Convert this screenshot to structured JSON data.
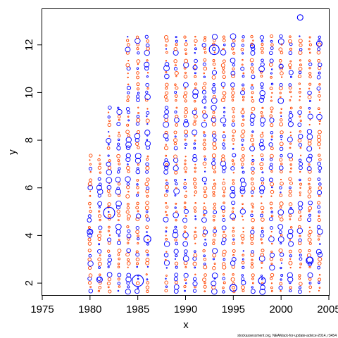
{
  "chart_data": {
    "type": "scatter",
    "title": "",
    "xlabel": "x",
    "ylabel": "y",
    "xlim": [
      1975,
      2005
    ],
    "ylim": [
      1.5,
      13.5
    ],
    "x_ticks": [
      1975,
      1980,
      1985,
      1990,
      1995,
      2000,
      2005
    ],
    "y_ticks": [
      2,
      4,
      6,
      8,
      10,
      12
    ],
    "grid": false,
    "legend": "none",
    "footer": "stockassessment.org, NEAMack-for-update-advice-2014, r3454",
    "colors": {
      "positive_residual": "#ff4500",
      "negative_residual": "#0000ff"
    },
    "marker": "open-circle-size-proportional",
    "age_years": [
      1980,
      1981,
      1982,
      1983,
      1984,
      1985,
      1986,
      1988,
      1989,
      1990,
      1991,
      1992,
      1993,
      1994,
      1995,
      1996,
      1997,
      1998,
      1999,
      2000,
      2001,
      2002,
      2003,
      2004
    ],
    "y_levels": [
      2,
      3,
      4,
      5,
      6,
      7,
      8,
      9,
      10,
      11,
      12
    ],
    "highlight_points": [
      {
        "x": 1980,
        "y": 4.15,
        "series": "negative",
        "size": 4
      },
      {
        "x": 1982,
        "y": 4.95,
        "series": "negative",
        "size": 8
      },
      {
        "x": 1985,
        "y": 2.1,
        "series": "negative",
        "size": 8
      },
      {
        "x": 1993,
        "y": 11.8,
        "series": "negative",
        "size": 7
      },
      {
        "x": 2002,
        "y": 13.15,
        "series": "negative",
        "size": 4
      },
      {
        "x": 2004,
        "y": 12.05,
        "series": "negative",
        "size": 4
      },
      {
        "x": 1986,
        "y": 3.85,
        "series": "negative",
        "size": 5
      },
      {
        "x": 1995,
        "y": 1.8,
        "series": "negative",
        "size": 5
      },
      {
        "x": 1998,
        "y": 2.1,
        "series": "negative",
        "size": 5
      },
      {
        "x": 2003,
        "y": 2.95,
        "series": "negative",
        "size": 5
      },
      {
        "x": 1981,
        "y": 2.15,
        "series": "negative",
        "size": 4
      },
      {
        "x": 1988,
        "y": 7.0,
        "series": "negative",
        "size": 4
      },
      {
        "x": 1991,
        "y": 11.05,
        "series": "negative",
        "size": 3
      },
      {
        "x": 1997,
        "y": 11.95,
        "series": "negative",
        "size": 3
      },
      {
        "x": 2000,
        "y": 11.1,
        "series": "negative",
        "size": 3
      }
    ]
  }
}
